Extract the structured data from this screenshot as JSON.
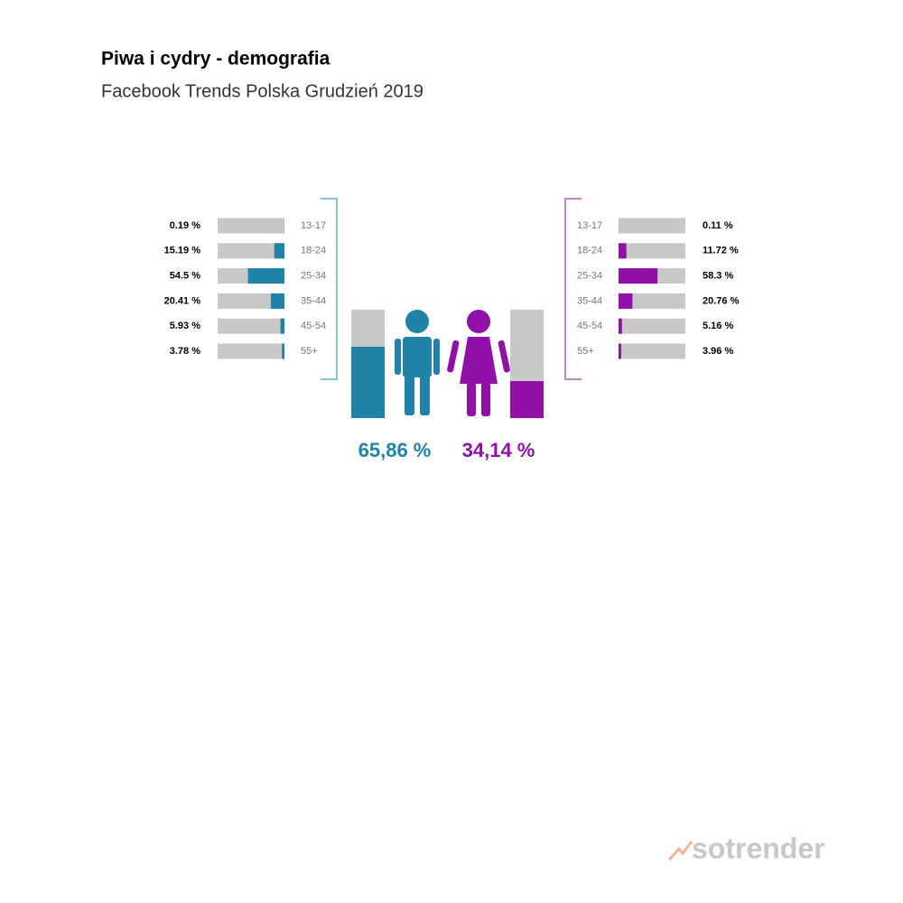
{
  "header": {
    "title": "Piwa i cydry - demografia",
    "subtitle": "Facebook Trends Polska Grudzień 2019"
  },
  "footer": {
    "logo": "sotrender"
  },
  "chart_data": [
    {
      "type": "hbar",
      "align": "right",
      "color": "#1f82a6",
      "track_color": "#c8c8c8",
      "xlim": [
        0,
        100
      ],
      "categories": [
        "13-17",
        "18-24",
        "25-34",
        "35-44",
        "45-54",
        "55+"
      ],
      "values": [
        0.19,
        15.19,
        54.5,
        20.41,
        5.93,
        3.78
      ],
      "value_labels": [
        "0.19 %",
        "15.19 %",
        "54.5 %",
        "20.41 %",
        "5.93 %",
        "3.78 %"
      ]
    },
    {
      "type": "hbar",
      "align": "left",
      "color": "#9010a8",
      "track_color": "#c8c8c8",
      "xlim": [
        0,
        100
      ],
      "categories": [
        "13-17",
        "18-24",
        "25-34",
        "35-44",
        "45-54",
        "55+"
      ],
      "values": [
        0.11,
        11.72,
        58.3,
        20.76,
        5.16,
        3.96
      ],
      "value_labels": [
        "0.11 %",
        "11.72 %",
        "58.3 %",
        "20.76 %",
        "5.16 %",
        "3.96 %"
      ]
    },
    {
      "type": "gender",
      "ylim": [
        0,
        100
      ],
      "track_color": "#c8c8c8",
      "colors": [
        "#1f82a6",
        "#9010a8"
      ],
      "values": [
        65.86,
        34.14
      ],
      "value_labels": [
        "65,86 %",
        "34,14 %"
      ]
    }
  ]
}
